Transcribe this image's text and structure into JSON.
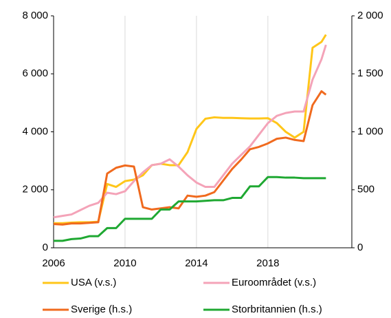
{
  "chart_data": {
    "type": "line",
    "x": [
      2006,
      2006.5,
      2007,
      2007.5,
      2008,
      2008.5,
      2009,
      2009.5,
      2010,
      2010.5,
      2011,
      2011.5,
      2012,
      2012.5,
      2013,
      2013.5,
      2014,
      2014.5,
      2015,
      2015.5,
      2016,
      2016.5,
      2017,
      2017.5,
      2018,
      2018.5,
      2019,
      2019.5,
      2020,
      2020.5,
      2021,
      2021.25
    ],
    "xlim": [
      2006,
      2022.7
    ],
    "xticks": [
      2006,
      2010,
      2014,
      2018
    ],
    "ylim": [
      0,
      8000
    ],
    "yticks": [
      0,
      {
        "value": 2000,
        "label": "2 000"
      },
      {
        "value": 4000,
        "label": "4 000"
      },
      {
        "value": 6000,
        "label": "6 000"
      },
      {
        "value": 8000,
        "label": "8 000"
      }
    ],
    "y2lim": [
      0,
      2000
    ],
    "y2ticks": [
      0,
      500,
      {
        "value": 1000,
        "label": "1 000"
      },
      {
        "value": 1500,
        "label": "1 500"
      },
      {
        "value": 2000,
        "label": "2 000"
      }
    ],
    "grid": "x",
    "legend": "bottom",
    "series": [
      {
        "name": "USA (v.s.)",
        "color": "#ffc619",
        "axis": "y",
        "values": [
          850,
          850,
          870,
          880,
          880,
          900,
          2200,
          2100,
          2300,
          2350,
          2500,
          2850,
          2900,
          2850,
          2850,
          3300,
          4100,
          4450,
          4500,
          4480,
          4480,
          4470,
          4460,
          4460,
          4470,
          4300,
          4000,
          3800,
          4000,
          6900,
          7100,
          7350
        ]
      },
      {
        "name": "Euroområdet (v.s.)",
        "color": "#f4a3b8",
        "axis": "y",
        "values": [
          1050,
          1100,
          1150,
          1300,
          1450,
          1550,
          1900,
          1850,
          1950,
          2300,
          2600,
          2850,
          2900,
          3050,
          2800,
          2500,
          2250,
          2100,
          2100,
          2500,
          2900,
          3200,
          3500,
          3900,
          4300,
          4550,
          4650,
          4700,
          4700,
          5800,
          6500,
          7000
        ]
      },
      {
        "name": "Sverige (h.s.)",
        "color": "#f06a1e",
        "axis": "y2",
        "values": [
          205,
          200,
          210,
          210,
          215,
          220,
          640,
          690,
          710,
          700,
          350,
          330,
          340,
          350,
          340,
          450,
          440,
          450,
          480,
          580,
          680,
          760,
          850,
          870,
          900,
          940,
          950,
          930,
          920,
          1230,
          1350,
          1320
        ]
      },
      {
        "name": "Storbritannien (h.s.)",
        "color": "#1fa832",
        "axis": "y2",
        "values": [
          60,
          60,
          75,
          80,
          100,
          100,
          170,
          170,
          250,
          250,
          250,
          250,
          330,
          330,
          400,
          400,
          400,
          405,
          410,
          410,
          430,
          430,
          530,
          530,
          610,
          610,
          605,
          605,
          600,
          600,
          600,
          600
        ]
      }
    ]
  }
}
